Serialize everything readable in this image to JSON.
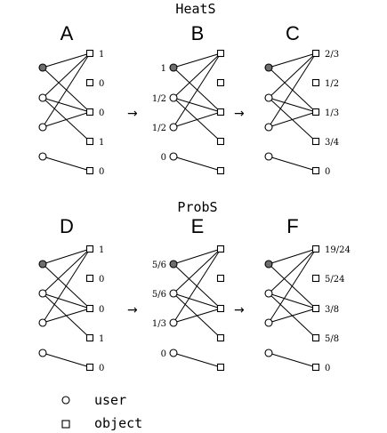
{
  "sections": [
    {
      "title": "HeatS",
      "panels": [
        {
          "label": "A",
          "user_values": [],
          "object_values": [
            "1",
            "0",
            "0",
            "1",
            "0"
          ]
        },
        {
          "label": "B",
          "user_values": [
            "1",
            "1/2",
            "1/2",
            "0"
          ],
          "object_values": []
        },
        {
          "label": "C",
          "user_values": [],
          "object_values": [
            "2/3",
            "1/2",
            "1/3",
            "3/4",
            "0"
          ]
        }
      ]
    },
    {
      "title": "ProbS",
      "panels": [
        {
          "label": "D",
          "user_values": [],
          "object_values": [
            "1",
            "0",
            "0",
            "1",
            "0"
          ]
        },
        {
          "label": "E",
          "user_values": [
            "5/6",
            "5/6",
            "1/3",
            "0"
          ],
          "object_values": []
        },
        {
          "label": "F",
          "user_values": [],
          "object_values": [
            "19/24",
            "5/24",
            "3/8",
            "5/8",
            "0"
          ]
        }
      ]
    }
  ],
  "graph": {
    "selected_user": 0,
    "edges": [
      [
        0,
        0
      ],
      [
        0,
        2
      ],
      [
        1,
        0
      ],
      [
        1,
        2
      ],
      [
        1,
        3
      ],
      [
        2,
        0
      ],
      [
        2,
        2
      ],
      [
        3,
        4
      ]
    ]
  },
  "arrow_glyph": "→",
  "legend": [
    {
      "shape": "circle",
      "label": "user"
    },
    {
      "shape": "square",
      "label": "object"
    }
  ]
}
